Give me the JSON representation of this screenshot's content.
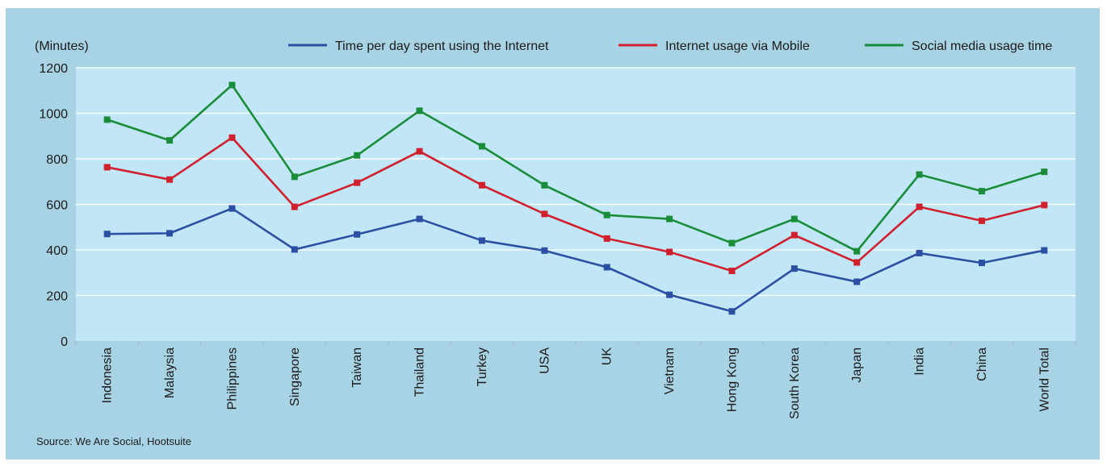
{
  "chart_data": {
    "type": "line",
    "unit_label": "(Minutes)",
    "ylim": [
      0,
      1200
    ],
    "y_ticks": [
      0,
      200,
      400,
      600,
      800,
      1000,
      1200
    ],
    "categories": [
      "Indonesia",
      "Malaysia",
      "Philippines",
      "Singapore",
      "Taiwan",
      "Thailand",
      "Turkey",
      "USA",
      "UK",
      "Vietnam",
      "Hong Kong",
      "South Korea",
      "Japan",
      "India",
      "China",
      "World Total"
    ],
    "series": [
      {
        "name": "Time per day spent using the Internet",
        "color": "#2b4fa2",
        "values": [
          470,
          473,
          582,
          402,
          468,
          536,
          441,
          397,
          324,
          203,
          130,
          318,
          260,
          386,
          343,
          398
        ]
      },
      {
        "name": "Internet usage via Mobile",
        "color": "#d0202e",
        "values": [
          763,
          709,
          893,
          589,
          695,
          833,
          684,
          558,
          450,
          391,
          308,
          465,
          345,
          589,
          528,
          597
        ]
      },
      {
        "name": "Social media usage time",
        "color": "#1a8c3a",
        "values": [
          972,
          881,
          1124,
          721,
          815,
          1011,
          855,
          684,
          553,
          536,
          430,
          536,
          394,
          731,
          658,
          743
        ]
      }
    ],
    "grid": true,
    "legend_position": "top",
    "source": "Source: We Are Social, Hootsuite"
  },
  "colors": {
    "frame_bg": "#a8d3e4",
    "plot_bg": "#c0e6f7",
    "grid": "#ffffff"
  }
}
